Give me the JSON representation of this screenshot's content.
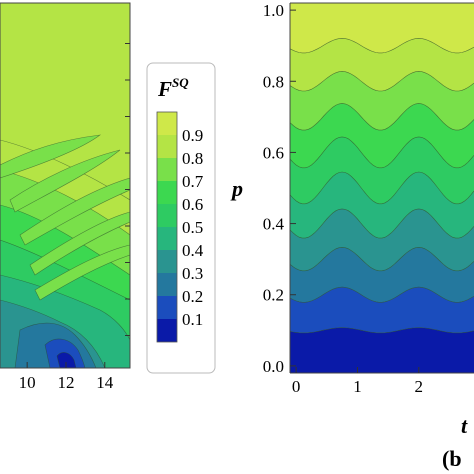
{
  "chart_data": [
    {
      "type": "contour",
      "panel": "a",
      "x_ticks": [
        "10",
        "12",
        "14"
      ],
      "x_tick_values": [
        10,
        12,
        14
      ],
      "xlim": [
        8.6,
        15.3
      ],
      "colors": [
        "#0a1aa8",
        "#1b4dbd",
        "#24789e",
        "#2a9490",
        "#27b67d",
        "#2ecb62",
        "#3cd850",
        "#79e04a",
        "#b4e445",
        "#cfe849"
      ]
    },
    {
      "type": "colorbar",
      "title": "F",
      "title_superscript": "SQ",
      "ticks": [
        "0.9",
        "0.8",
        "0.7",
        "0.6",
        "0.5",
        "0.4",
        "0.3",
        "0.2",
        "0.1"
      ],
      "tick_values": [
        0.9,
        0.8,
        0.7,
        0.6,
        0.5,
        0.4,
        0.3,
        0.2,
        0.1
      ],
      "range": [
        0.0,
        1.0
      ],
      "colors": [
        "#cfe849",
        "#b4e445",
        "#79e04a",
        "#3cd850",
        "#2ecb62",
        "#27b67d",
        "#2a9490",
        "#24789e",
        "#1b4dbd",
        "#0a1aa8"
      ]
    },
    {
      "type": "contour",
      "panel": "b",
      "ylabel": "p",
      "xlabel": "t",
      "panel_label": "(b",
      "y_ticks": [
        "1.0",
        "0.8",
        "0.6",
        "0.4",
        "0.2",
        "0.0"
      ],
      "y_tick_values": [
        1.0,
        0.8,
        0.6,
        0.4,
        0.2,
        0.0
      ],
      "ylim": [
        -0.02,
        1.02
      ],
      "x_ticks": [
        "0",
        "1",
        "2"
      ],
      "x_tick_values": [
        0,
        1,
        2
      ],
      "xlim": [
        -0.1,
        2.9
      ],
      "contour_levels": [
        0.1,
        0.2,
        0.3,
        0.4,
        0.5,
        0.6,
        0.7,
        0.8,
        0.9
      ],
      "colors": [
        "#0a1aa8",
        "#1b4dbd",
        "#24789e",
        "#2a9490",
        "#27b67d",
        "#2ecb62",
        "#3cd850",
        "#79e04a",
        "#b4e445",
        "#cfe849"
      ]
    }
  ]
}
